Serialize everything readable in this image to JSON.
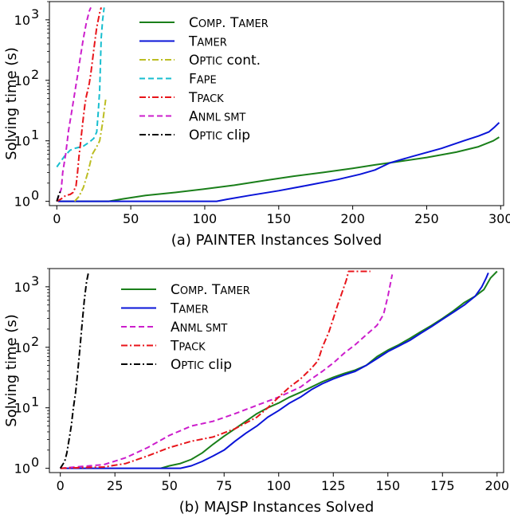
{
  "chart_data": [
    {
      "type": "line",
      "title": "",
      "xlabel": "(a) PAINTER Instances Solved",
      "ylabel": "Solving time (s)",
      "yscale": "log",
      "xlim": [
        -5,
        302
      ],
      "ylim": [
        0.85,
        2000
      ],
      "xticks": [
        "0",
        "50",
        "100",
        "150",
        "200",
        "250",
        "300"
      ],
      "yticks": [
        {
          "base": "10",
          "exp": "0"
        },
        {
          "base": "10",
          "exp": "1"
        },
        {
          "base": "10",
          "exp": "2"
        },
        {
          "base": "10",
          "exp": "3"
        }
      ],
      "legend_position": "top-center",
      "series": [
        {
          "name": "Comp. Tamer",
          "legend": [
            "C",
            "OMP",
            ". T",
            "AMER"
          ],
          "color": "#1a7f1a",
          "dash": "solid",
          "points": [
            [
              1,
              1
            ],
            [
              20,
              1
            ],
            [
              35,
              1
            ],
            [
              45,
              1.1
            ],
            [
              60,
              1.25
            ],
            [
              80,
              1.4
            ],
            [
              100,
              1.6
            ],
            [
              120,
              1.85
            ],
            [
              140,
              2.2
            ],
            [
              160,
              2.6
            ],
            [
              180,
              3.0
            ],
            [
              200,
              3.5
            ],
            [
              215,
              4.0
            ],
            [
              230,
              4.5
            ],
            [
              250,
              5.3
            ],
            [
              270,
              6.5
            ],
            [
              285,
              8.0
            ],
            [
              295,
              10.0
            ],
            [
              299,
              11.5
            ]
          ]
        },
        {
          "name": "Tamer",
          "legend": [
            "T",
            "AMER"
          ],
          "color": "#0a14d8",
          "dash": "solid",
          "points": [
            [
              1,
              1
            ],
            [
              50,
              1
            ],
            [
              80,
              1
            ],
            [
              108,
              1
            ],
            [
              115,
              1.08
            ],
            [
              130,
              1.25
            ],
            [
              150,
              1.5
            ],
            [
              170,
              1.85
            ],
            [
              190,
              2.3
            ],
            [
              205,
              2.8
            ],
            [
              215,
              3.3
            ],
            [
              225,
              4.3
            ],
            [
              240,
              5.5
            ],
            [
              260,
              7.5
            ],
            [
              275,
              10
            ],
            [
              285,
              12
            ],
            [
              292,
              14
            ],
            [
              296,
              17
            ],
            [
              299,
              20
            ]
          ]
        },
        {
          "name": "Optic cont.",
          "legend": [
            "O",
            "PTIC",
            " cont."
          ],
          "color": "#bcbd22",
          "dash": "dashdot",
          "points": [
            [
              12,
              1
            ],
            [
              15,
              1.2
            ],
            [
              18,
              1.7
            ],
            [
              21,
              3
            ],
            [
              24,
              6
            ],
            [
              27,
              8
            ],
            [
              29,
              10
            ],
            [
              31,
              20
            ],
            [
              33,
              48
            ]
          ]
        },
        {
          "name": "Fape",
          "legend": [
            "F",
            "APE"
          ],
          "color": "#17becf",
          "dash": "dashed",
          "points": [
            [
              0,
              3.7
            ],
            [
              5,
              5.5
            ],
            [
              9,
              7
            ],
            [
              12,
              7.5
            ],
            [
              15,
              7.8
            ],
            [
              18,
              8.2
            ],
            [
              22,
              9.5
            ],
            [
              25,
              11
            ],
            [
              27,
              14
            ],
            [
              28,
              30
            ],
            [
              29,
              70
            ],
            [
              30,
              500
            ],
            [
              31,
              1000
            ],
            [
              32,
              1600
            ]
          ]
        },
        {
          "name": "Tpack",
          "legend": [
            "T",
            "PACK"
          ],
          "color": "#e8141a",
          "dash": "dashdot",
          "points": [
            [
              0,
              1
            ],
            [
              3,
              1.1
            ],
            [
              6,
              1.25
            ],
            [
              9,
              1.3
            ],
            [
              11,
              1.4
            ],
            [
              13,
              1.8
            ],
            [
              14,
              3
            ],
            [
              15,
              5.5
            ],
            [
              16,
              9
            ],
            [
              17,
              15
            ],
            [
              18,
              25
            ],
            [
              19,
              40
            ],
            [
              20,
              55
            ],
            [
              21,
              70
            ],
            [
              22,
              90
            ],
            [
              23,
              130
            ],
            [
              24,
              200
            ],
            [
              25,
              320
            ],
            [
              26,
              500
            ],
            [
              27,
              750
            ],
            [
              28,
              1000
            ],
            [
              29,
              1300
            ],
            [
              30,
              1600
            ]
          ]
        },
        {
          "name": "Anml smt",
          "legend": [
            "A",
            "NML SMT"
          ],
          "color": "#cc1ecc",
          "dash": "dashed",
          "points": [
            [
              0,
              1
            ],
            [
              3,
              1.6
            ],
            [
              4,
              3
            ],
            [
              6,
              6
            ],
            [
              8,
              15
            ],
            [
              10,
              30
            ],
            [
              12,
              60
            ],
            [
              14,
              120
            ],
            [
              16,
              250
            ],
            [
              18,
              500
            ],
            [
              20,
              900
            ],
            [
              22,
              1400
            ],
            [
              23,
              1600
            ]
          ]
        },
        {
          "name": "Optic clip",
          "legend": [
            "O",
            "PTIC",
            " clip"
          ],
          "color": "#000000",
          "dash": "dashdot",
          "points": [
            [
              0,
              1
            ],
            [
              1,
              1.2
            ],
            [
              2,
              1.4
            ],
            [
              3,
              1.5
            ]
          ]
        }
      ]
    },
    {
      "type": "line",
      "title": "",
      "xlabel": "(b) MAJSP Instances Solved",
      "ylabel": "Solving time (s)",
      "yscale": "log",
      "xlim": [
        -5,
        203
      ],
      "ylim": [
        0.85,
        2000
      ],
      "xticks": [
        "0",
        "25",
        "50",
        "75",
        "100",
        "125",
        "150",
        "175",
        "200"
      ],
      "yticks": [
        {
          "base": "10",
          "exp": "0"
        },
        {
          "base": "10",
          "exp": "1"
        },
        {
          "base": "10",
          "exp": "2"
        },
        {
          "base": "10",
          "exp": "3"
        }
      ],
      "legend_position": "top-center",
      "series": [
        {
          "name": "Comp. Tamer",
          "legend": [
            "C",
            "OMP",
            ". T",
            "AMER"
          ],
          "color": "#1a7f1a",
          "dash": "solid",
          "points": [
            [
              46,
              1
            ],
            [
              50,
              1.1
            ],
            [
              55,
              1.2
            ],
            [
              60,
              1.4
            ],
            [
              65,
              1.8
            ],
            [
              70,
              2.5
            ],
            [
              75,
              3.4
            ],
            [
              80,
              4.5
            ],
            [
              85,
              6
            ],
            [
              90,
              8
            ],
            [
              95,
              10
            ],
            [
              100,
              12
            ],
            [
              105,
              15
            ],
            [
              110,
              18
            ],
            [
              115,
              22
            ],
            [
              120,
              27
            ],
            [
              125,
              32
            ],
            [
              130,
              37
            ],
            [
              135,
              42
            ],
            [
              140,
              50
            ],
            [
              145,
              70
            ],
            [
              150,
              90
            ],
            [
              155,
              110
            ],
            [
              160,
              140
            ],
            [
              165,
              180
            ],
            [
              170,
              230
            ],
            [
              175,
              300
            ],
            [
              180,
              400
            ],
            [
              185,
              550
            ],
            [
              190,
              700
            ],
            [
              194,
              900
            ],
            [
              197,
              1400
            ],
            [
              200,
              1800
            ]
          ]
        },
        {
          "name": "Tamer",
          "legend": [
            "T",
            "AMER"
          ],
          "color": "#0a14d8",
          "dash": "solid",
          "points": [
            [
              0,
              1
            ],
            [
              20,
              1
            ],
            [
              40,
              1
            ],
            [
              55,
              1
            ],
            [
              60,
              1.1
            ],
            [
              65,
              1.3
            ],
            [
              70,
              1.6
            ],
            [
              75,
              2
            ],
            [
              80,
              2.8
            ],
            [
              85,
              3.8
            ],
            [
              90,
              5
            ],
            [
              95,
              7
            ],
            [
              100,
              9
            ],
            [
              105,
              12
            ],
            [
              110,
              15
            ],
            [
              115,
              20
            ],
            [
              120,
              25
            ],
            [
              125,
              30
            ],
            [
              130,
              35
            ],
            [
              135,
              40
            ],
            [
              140,
              50
            ],
            [
              145,
              65
            ],
            [
              150,
              85
            ],
            [
              155,
              105
            ],
            [
              160,
              130
            ],
            [
              165,
              170
            ],
            [
              170,
              220
            ],
            [
              175,
              290
            ],
            [
              180,
              380
            ],
            [
              185,
              500
            ],
            [
              190,
              700
            ],
            [
              193,
              1000
            ],
            [
              195,
              1400
            ],
            [
              196,
              1700
            ]
          ]
        },
        {
          "name": "Anml smt",
          "legend": [
            "A",
            "NML SMT"
          ],
          "color": "#cc1ecc",
          "dash": "dashed",
          "points": [
            [
              0,
              1
            ],
            [
              20,
              1.15
            ],
            [
              30,
              1.5
            ],
            [
              40,
              2.2
            ],
            [
              50,
              3.5
            ],
            [
              60,
              5
            ],
            [
              70,
              6
            ],
            [
              80,
              8
            ],
            [
              90,
              11
            ],
            [
              100,
              15
            ],
            [
              110,
              22
            ],
            [
              115,
              30
            ],
            [
              120,
              40
            ],
            [
              125,
              55
            ],
            [
              130,
              80
            ],
            [
              135,
              110
            ],
            [
              140,
              160
            ],
            [
              145,
              230
            ],
            [
              148,
              350
            ],
            [
              150,
              700
            ],
            [
              152,
              1600
            ]
          ]
        },
        {
          "name": "Tpack",
          "legend": [
            "T",
            "PACK"
          ],
          "color": "#e8141a",
          "dash": "dashdot",
          "points": [
            [
              0,
              1
            ],
            [
              20,
              1.05
            ],
            [
              30,
              1.2
            ],
            [
              40,
              1.6
            ],
            [
              50,
              2.2
            ],
            [
              60,
              2.8
            ],
            [
              70,
              3.3
            ],
            [
              80,
              4.5
            ],
            [
              90,
              7
            ],
            [
              95,
              10
            ],
            [
              100,
              15
            ],
            [
              105,
              22
            ],
            [
              110,
              30
            ],
            [
              115,
              45
            ],
            [
              118,
              60
            ],
            [
              120,
              100
            ],
            [
              123,
              180
            ],
            [
              125,
              300
            ],
            [
              127,
              500
            ],
            [
              129,
              800
            ],
            [
              131,
              1300
            ],
            [
              132,
              1800
            ],
            [
              142,
              1800
            ]
          ]
        },
        {
          "name": "Optic clip",
          "legend": [
            "O",
            "PTIC",
            " clip"
          ],
          "color": "#000000",
          "dash": "dashdot",
          "points": [
            [
              0,
              1
            ],
            [
              2,
              1.3
            ],
            [
              3,
              1.8
            ],
            [
              4,
              3
            ],
            [
              5,
              5
            ],
            [
              6,
              10
            ],
            [
              7,
              18
            ],
            [
              8,
              40
            ],
            [
              9,
              100
            ],
            [
              10,
              250
            ],
            [
              11,
              600
            ],
            [
              12,
              1200
            ],
            [
              13,
              1800
            ]
          ]
        }
      ]
    }
  ]
}
